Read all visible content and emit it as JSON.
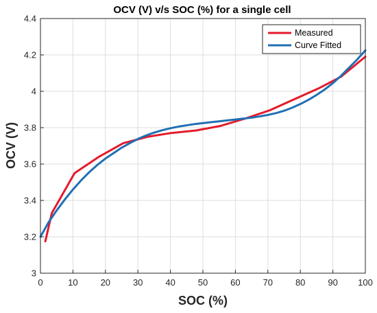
{
  "chart_data": {
    "type": "line",
    "title": "OCV (V) v/s SOC (%) for a single cell",
    "xlabel": "SOC (%)",
    "ylabel": "OCV (V)",
    "xlim": [
      0,
      100
    ],
    "ylim": [
      3.0,
      4.4
    ],
    "x_ticks": [
      0,
      10,
      20,
      30,
      40,
      50,
      60,
      70,
      80,
      90,
      100
    ],
    "y_ticks": [
      3.0,
      3.2,
      3.4,
      3.6,
      3.8,
      4.0,
      4.2,
      4.4
    ],
    "x_tick_labels": [
      "0",
      "10",
      "20",
      "30",
      "40",
      "50",
      "60",
      "70",
      "80",
      "90",
      "100"
    ],
    "y_tick_labels": [
      "3",
      "3.2",
      "3.4",
      "3.6",
      "3.8",
      "4",
      "4.2",
      "4.4"
    ],
    "grid": true,
    "legend_position": "top-right",
    "series": [
      {
        "name": "Measured",
        "color": "#e41a2c",
        "x": [
          1.5,
          3.5,
          10.5,
          18,
          25.5,
          33,
          40,
          48,
          55.5,
          63,
          70.5,
          78,
          85.5,
          92.5,
          100
        ],
        "y": [
          3.175,
          3.33,
          3.55,
          3.64,
          3.715,
          3.75,
          3.77,
          3.785,
          3.81,
          3.85,
          3.895,
          3.955,
          4.015,
          4.08,
          4.19
        ]
      },
      {
        "name": "Curve Fitted",
        "color": "#1f6fb4",
        "x": [
          0,
          2.5,
          5,
          7.5,
          10,
          12.5,
          15,
          17.5,
          20,
          22.5,
          25,
          27.5,
          30,
          32.5,
          35,
          37.5,
          40,
          42.5,
          45,
          47.5,
          50,
          52.5,
          55,
          57.5,
          60,
          62.5,
          65,
          67.5,
          70,
          72.5,
          75,
          77.5,
          80,
          82.5,
          85,
          87.5,
          90,
          92.5,
          95,
          97.5,
          100
        ],
        "y": [
          3.2,
          3.28,
          3.345,
          3.405,
          3.46,
          3.51,
          3.555,
          3.595,
          3.63,
          3.66,
          3.69,
          3.715,
          3.738,
          3.757,
          3.773,
          3.786,
          3.797,
          3.806,
          3.813,
          3.82,
          3.825,
          3.83,
          3.835,
          3.84,
          3.845,
          3.85,
          3.855,
          3.862,
          3.87,
          3.88,
          3.893,
          3.91,
          3.93,
          3.953,
          3.98,
          4.01,
          4.045,
          4.085,
          4.13,
          4.175,
          4.225
        ]
      }
    ]
  }
}
